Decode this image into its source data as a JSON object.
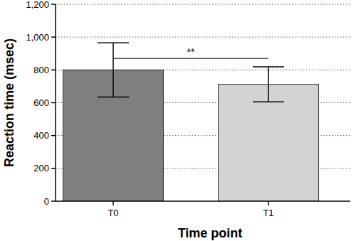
{
  "chart_data": {
    "type": "bar",
    "x_label": "Time point",
    "y_label": "Reaction time (msec)",
    "categories": [
      "T0",
      "T1"
    ],
    "values": [
      800,
      712
    ],
    "errors": [
      165,
      107
    ],
    "colors": [
      "#7f7f7f",
      "#d3d3d3"
    ],
    "ylim": [
      0,
      1200
    ],
    "yticks": [
      0,
      200,
      400,
      600,
      800,
      {
        "value": 1000,
        "label": "1,000"
      },
      {
        "value": 1200,
        "label": "1,200"
      }
    ],
    "grid": true,
    "annotations": [
      {
        "text": "**",
        "from": "T0",
        "to": "T1",
        "y": 870
      }
    ]
  }
}
